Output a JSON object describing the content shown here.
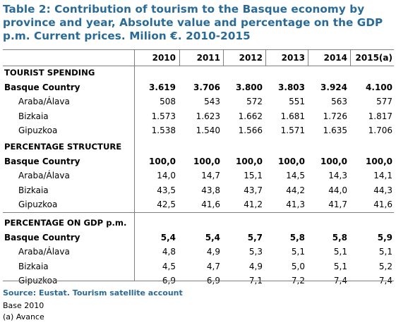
{
  "title": "Table 2: Contribution of tourism to the Basque economy by province and year, Absolute value and percentage on the GDP p.m. Current prices. Milion €. 2010-2015",
  "columns": [
    "2010",
    "2011",
    "2012",
    "2013",
    "2014",
    "2015(a)"
  ],
  "sections": [
    {
      "title": "TOURIST SPENDING",
      "rows": [
        {
          "label": "Basque Country",
          "bold": true,
          "values": [
            "3.619",
            "3.706",
            "3.800",
            "3.803",
            "3.924",
            "4.100"
          ]
        },
        {
          "label": "Araba/Álava",
          "bold": false,
          "values": [
            "508",
            "543",
            "572",
            "551",
            "563",
            "577"
          ]
        },
        {
          "label": "Bizkaia",
          "bold": false,
          "values": [
            "1.573",
            "1.623",
            "1.662",
            "1.681",
            "1.726",
            "1.817"
          ]
        },
        {
          "label": "Gipuzkoa",
          "bold": false,
          "values": [
            "1.538",
            "1.540",
            "1.566",
            "1.571",
            "1.635",
            "1.706"
          ]
        }
      ]
    },
    {
      "title": "PERCENTAGE STRUCTURE",
      "rows": [
        {
          "label": "Basque Country",
          "bold": true,
          "values": [
            "100,0",
            "100,0",
            "100,0",
            "100,0",
            "100,0",
            "100,0"
          ]
        },
        {
          "label": "Araba/Álava",
          "bold": false,
          "values": [
            "14,0",
            "14,7",
            "15,1",
            "14,5",
            "14,3",
            "14,1"
          ]
        },
        {
          "label": "Bizkaia",
          "bold": false,
          "values": [
            "43,5",
            "43,8",
            "43,7",
            "44,2",
            "44,0",
            "44,3"
          ]
        },
        {
          "label": "Gipuzkoa",
          "bold": false,
          "values": [
            "42,5",
            "41,6",
            "41,2",
            "41,3",
            "41,7",
            "41,6"
          ]
        }
      ]
    },
    {
      "title": "PERCENTAGE ON GDP p.m.",
      "rows": [
        {
          "label": "Basque Country",
          "bold": true,
          "values": [
            "5,4",
            "5,4",
            "5,7",
            "5,8",
            "5,8",
            "5,9"
          ]
        },
        {
          "label": "Araba/Álava",
          "bold": false,
          "values": [
            "4,8",
            "4,9",
            "5,3",
            "5,1",
            "5,1",
            "5,1"
          ]
        },
        {
          "label": "Bizkaia",
          "bold": false,
          "values": [
            "4,5",
            "4,7",
            "4,9",
            "5,0",
            "5,1",
            "5,2"
          ]
        },
        {
          "label": "Gipuzkoa",
          "bold": false,
          "values": [
            "6,9",
            "6,9",
            "7,1",
            "7,2",
            "7,4",
            "7,4"
          ]
        }
      ]
    }
  ],
  "source": "Source: Eustat. Tourism satellite account",
  "notes": [
    "Base 2010",
    "(a) Avance"
  ],
  "colors": {
    "title": "#2a6a96",
    "border": "#7f7f7f"
  }
}
